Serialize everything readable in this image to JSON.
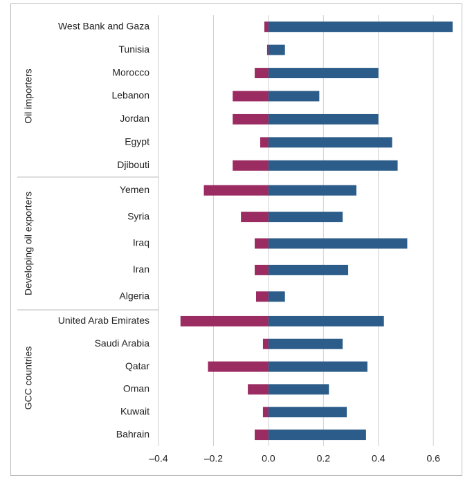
{
  "chart_data": {
    "type": "bar",
    "orientation": "horizontal",
    "xlim": [
      -0.4,
      0.67
    ],
    "xticks": [
      {
        "value": -0.4,
        "label": "–0.4"
      },
      {
        "value": -0.2,
        "label": "–0.2"
      },
      {
        "value": 0,
        "label": "0.0"
      },
      0.2,
      0.4,
      0.6
    ],
    "grid": true,
    "groups": [
      {
        "name": "Oil importers",
        "categories": [
          "West Bank and Gaza",
          "Tunisia",
          "Morocco",
          "Lebanon",
          "Jordan",
          "Egypt",
          "Djibouti"
        ],
        "series": [
          {
            "color": "#9b2c62",
            "values": [
              -0.015,
              -0.005,
              -0.05,
              -0.13,
              -0.13,
              -0.03,
              -0.13
            ]
          },
          {
            "color": "#2c5d8a",
            "values": [
              0.67,
              0.06,
              0.4,
              0.185,
              0.4,
              0.45,
              0.47
            ]
          }
        ]
      },
      {
        "name": "Developing oil exporters",
        "categories": [
          "Yemen",
          "Syria",
          "Iraq",
          "Iran",
          "Algeria"
        ],
        "series": [
          {
            "color": "#9b2c62",
            "values": [
              -0.235,
              -0.1,
              -0.05,
              -0.05,
              -0.045
            ]
          },
          {
            "color": "#2c5d8a",
            "values": [
              0.32,
              0.27,
              0.505,
              0.29,
              0.06
            ]
          }
        ]
      },
      {
        "name": "GCC countries",
        "categories": [
          "United Arab Emirates",
          "Saudi Arabia",
          "Qatar",
          "Oman",
          "Kuwait",
          "Bahrain"
        ],
        "series": [
          {
            "color": "#9b2c62",
            "values": [
              -0.32,
              -0.02,
              -0.22,
              -0.075,
              -0.02,
              -0.05
            ]
          },
          {
            "color": "#2c5d8a",
            "values": [
              0.42,
              0.27,
              0.36,
              0.22,
              0.285,
              0.355
            ]
          }
        ]
      }
    ]
  }
}
